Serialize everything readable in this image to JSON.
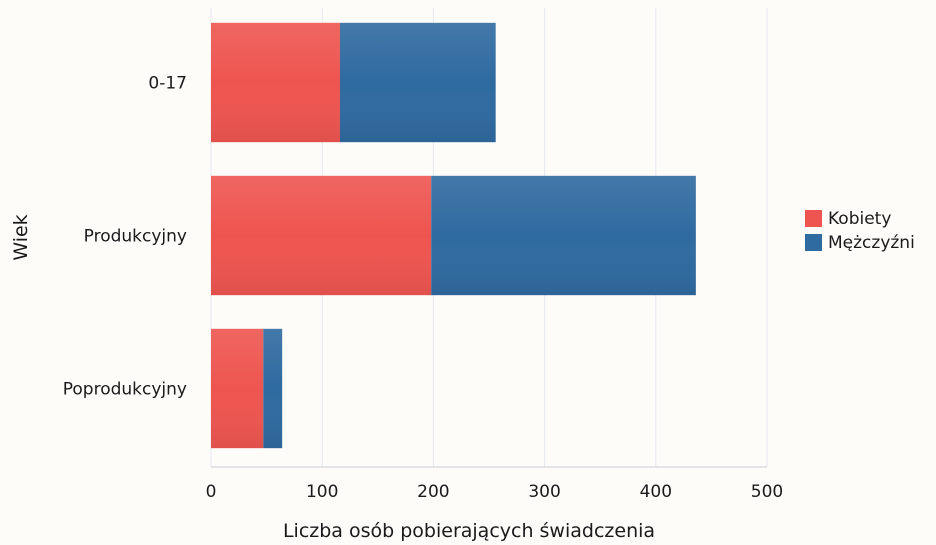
{
  "chart_data": {
    "type": "bar",
    "orientation": "horizontal",
    "stacked": true,
    "categories": [
      "0-17",
      "Produkcyjny",
      "Poprodukcyjny"
    ],
    "series": [
      {
        "name": "Kobiety",
        "values": [
          116,
          198,
          47
        ],
        "color": "#ee5550"
      },
      {
        "name": "Mężczyźni",
        "values": [
          140,
          238,
          17
        ],
        "color": "#2f6aa0"
      }
    ],
    "xlabel": "Liczba osób pobierających świadczenia",
    "ylabel": "Wiek",
    "xlim": [
      0,
      500
    ],
    "xticks": [
      "0",
      "100",
      "200",
      "300",
      "400",
      "500"
    ],
    "grid": true,
    "legend_position": "right"
  }
}
